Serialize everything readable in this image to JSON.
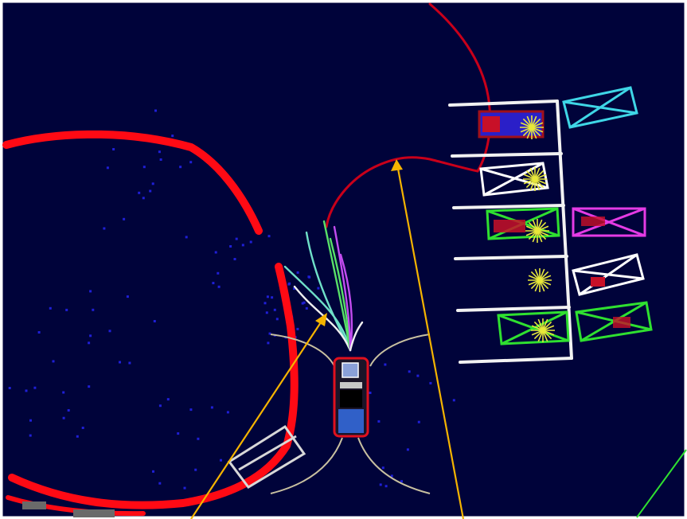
{
  "colors": {
    "background": "#00033a",
    "border": "#ffffff",
    "laser_points": "#ff0a14",
    "obstacle_points": "#1f1fd6",
    "planned_path": "#c8001a",
    "parking_line": "#f2f2f2",
    "annotation_arrow": "#f5b400",
    "vehicle_outline": "#e0101e",
    "slot_cyan": "#3fd6e6",
    "slot_white": "#ffffff",
    "slot_green": "#2fe030",
    "slot_magenta": "#e43be4",
    "slot_grey": "#d8d8d8",
    "candidate_cyan": "#6fe0c8",
    "candidate_green": "#58e068",
    "candidate_magenta": "#c24cf0",
    "candidate_white": "#f0f0f0",
    "detection_star": "#e8e83a",
    "sensor_arc": "#c8c0a0"
  },
  "icons": {
    "vehicle": "ego-vehicle-icon",
    "detection": "detection-star-icon"
  }
}
